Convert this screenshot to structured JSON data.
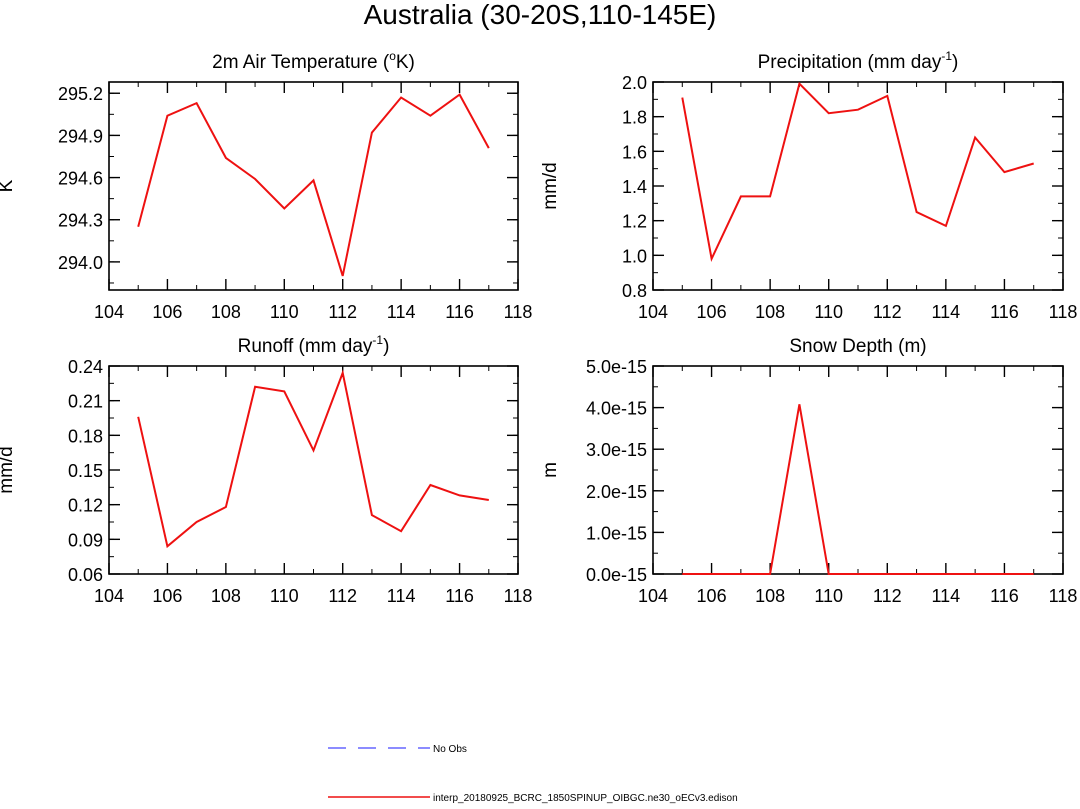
{
  "title": "Australia (30-20S,110-145E)",
  "legend": {
    "entries": [
      {
        "label": "No Obs",
        "color": "#6666ff",
        "style": "dashed"
      },
      {
        "label": "interp_20180925_BCRC_1850SPINUP_OIBGC.ne30_oECv3.edison",
        "color": "#ee1111",
        "style": "solid"
      }
    ],
    "placement": "bottom-center"
  },
  "chart_data": [
    {
      "type": "line",
      "title": "2m Air Temperature (",
      "title_sup": "o",
      "title_tail": "K)",
      "ylabel": "K",
      "xlim": [
        104,
        118
      ],
      "ylim": [
        293.8,
        295.28
      ],
      "yticks": [
        "294.0",
        "294.3",
        "294.6",
        "294.9",
        "295.2"
      ],
      "ytick_values": [
        294.0,
        294.3,
        294.6,
        294.9,
        295.2
      ],
      "xticks": [
        "104",
        "106",
        "108",
        "110",
        "112",
        "114",
        "116",
        "118"
      ],
      "x": [
        105,
        106,
        107,
        108,
        109,
        110,
        111,
        112,
        113,
        114,
        115,
        116,
        117
      ],
      "series": [
        {
          "color": "#ee1111",
          "values": [
            294.25,
            295.04,
            295.13,
            294.74,
            294.59,
            294.38,
            294.58,
            293.9,
            294.92,
            295.17,
            295.04,
            295.19,
            294.81
          ]
        }
      ]
    },
    {
      "type": "line",
      "title": "Precipitation (mm day",
      "title_sup": "-1",
      "title_tail": ")",
      "ylabel": "mm/d",
      "xlim": [
        104,
        118
      ],
      "ylim": [
        0.8,
        2.0
      ],
      "yticks": [
        "0.8",
        "1.0",
        "1.2",
        "1.4",
        "1.6",
        "1.8",
        "2.0"
      ],
      "ytick_values": [
        0.8,
        1.0,
        1.2,
        1.4,
        1.6,
        1.8,
        2.0
      ],
      "xticks": [
        "104",
        "106",
        "108",
        "110",
        "112",
        "114",
        "116",
        "118"
      ],
      "x": [
        105,
        106,
        107,
        108,
        109,
        110,
        111,
        112,
        113,
        114,
        115,
        116,
        117
      ],
      "series": [
        {
          "color": "#ee1111",
          "values": [
            1.91,
            0.98,
            1.34,
            1.34,
            1.99,
            1.82,
            1.84,
            1.92,
            1.25,
            1.17,
            1.68,
            1.48,
            1.53
          ]
        }
      ]
    },
    {
      "type": "line",
      "title": "Runoff (mm day",
      "title_sup": "-1",
      "title_tail": ")",
      "ylabel": "mm/d",
      "xlim": [
        104,
        118
      ],
      "ylim": [
        0.06,
        0.24
      ],
      "yticks": [
        "0.06",
        "0.09",
        "0.12",
        "0.15",
        "0.18",
        "0.21",
        "0.24"
      ],
      "ytick_values": [
        0.06,
        0.09,
        0.12,
        0.15,
        0.18,
        0.21,
        0.24
      ],
      "xticks": [
        "104",
        "106",
        "108",
        "110",
        "112",
        "114",
        "116",
        "118"
      ],
      "x": [
        105,
        106,
        107,
        108,
        109,
        110,
        111,
        112,
        113,
        114,
        115,
        116,
        117
      ],
      "series": [
        {
          "color": "#ee1111",
          "values": [
            0.196,
            0.084,
            0.105,
            0.118,
            0.222,
            0.218,
            0.167,
            0.234,
            0.111,
            0.097,
            0.137,
            0.128,
            0.124
          ]
        }
      ]
    },
    {
      "type": "line",
      "title": "Snow Depth (m)",
      "title_sup": "",
      "title_tail": "",
      "ylabel": "m",
      "xlim": [
        104,
        118
      ],
      "ylim": [
        0,
        5e-15
      ],
      "yticks": [
        "0.0e-15",
        "1.0e-15",
        "2.0e-15",
        "3.0e-15",
        "4.0e-15",
        "5.0e-15"
      ],
      "ytick_values": [
        0,
        1e-15,
        2e-15,
        3e-15,
        4e-15,
        5e-15
      ],
      "xticks": [
        "104",
        "106",
        "108",
        "110",
        "112",
        "114",
        "116",
        "118"
      ],
      "x": [
        105,
        106,
        107,
        108,
        109,
        110,
        111,
        112,
        113,
        114,
        115,
        116,
        117
      ],
      "series": [
        {
          "color": "#ee1111",
          "values": [
            0,
            0,
            0,
            0,
            4.08e-15,
            0,
            0,
            0,
            0,
            0,
            0,
            0,
            0
          ]
        }
      ]
    }
  ]
}
